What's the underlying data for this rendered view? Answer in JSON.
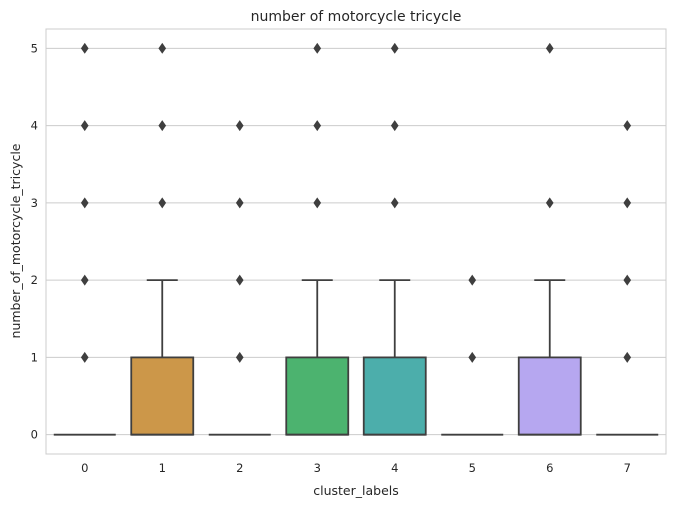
{
  "chart_data": {
    "type": "box",
    "title": "number of motorcycle tricycle",
    "xlabel": "cluster_labels",
    "ylabel": "number_of_motorcycle_tricycle",
    "ylim": [
      -0.25,
      5.25
    ],
    "yticks": [
      0,
      1,
      2,
      3,
      4,
      5
    ],
    "grid": "horizontal",
    "categories": [
      "0",
      "1",
      "2",
      "3",
      "4",
      "5",
      "6",
      "7"
    ],
    "boxes": [
      {
        "category": "0",
        "color": "#d38c8c",
        "q1": 0,
        "median": 0,
        "q3": 0,
        "whisker_low": 0,
        "whisker_high": 0,
        "outliers": [
          1,
          2,
          3,
          4,
          5
        ]
      },
      {
        "category": "1",
        "color": "#cc9749",
        "q1": 0,
        "median": 0,
        "q3": 1,
        "whisker_low": 0,
        "whisker_high": 2,
        "outliers": [
          3,
          4,
          5
        ]
      },
      {
        "category": "2",
        "color": "#9aa04a",
        "q1": 0,
        "median": 0,
        "q3": 0,
        "whisker_low": 0,
        "whisker_high": 0,
        "outliers": [
          1,
          2,
          3,
          4
        ]
      },
      {
        "category": "3",
        "color": "#4cb36f",
        "q1": 0,
        "median": 0,
        "q3": 1,
        "whisker_low": 0,
        "whisker_high": 2,
        "outliers": [
          3,
          4,
          5
        ]
      },
      {
        "category": "4",
        "color": "#4caeab",
        "q1": 0,
        "median": 0,
        "q3": 1,
        "whisker_low": 0,
        "whisker_high": 2,
        "outliers": [
          3,
          4,
          5
        ]
      },
      {
        "category": "5",
        "color": "#5aa6c8",
        "q1": 0,
        "median": 0,
        "q3": 0,
        "whisker_low": 0,
        "whisker_high": 0,
        "outliers": [
          1,
          2
        ]
      },
      {
        "category": "6",
        "color": "#b6a7f0",
        "q1": 0,
        "median": 0,
        "q3": 1,
        "whisker_low": 0,
        "whisker_high": 2,
        "outliers": [
          3,
          5
        ]
      },
      {
        "category": "7",
        "color": "#e08ec4",
        "q1": 0,
        "median": 0,
        "q3": 0,
        "whisker_low": 0,
        "whisker_high": 0,
        "outliers": [
          1,
          2,
          3,
          4
        ]
      }
    ]
  }
}
